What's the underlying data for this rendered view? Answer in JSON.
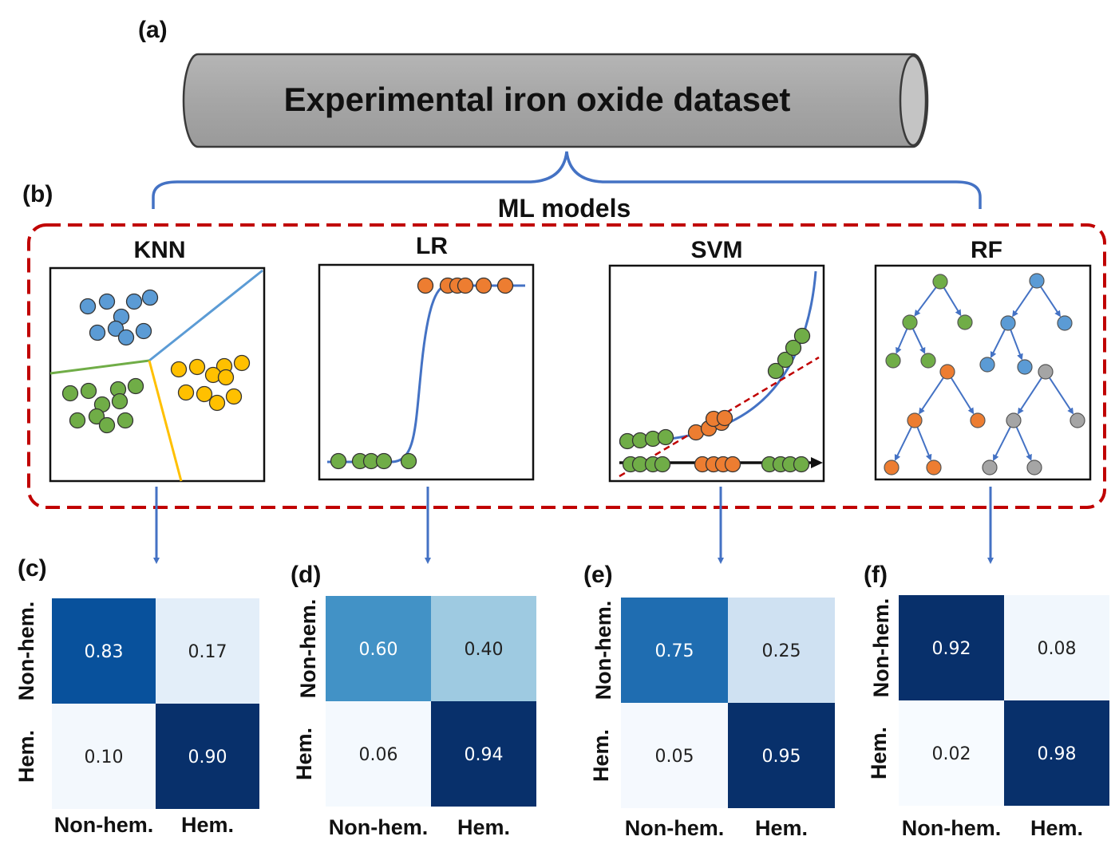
{
  "panel_a": {
    "label": "(a)",
    "title": "Experimental iron oxide dataset"
  },
  "panel_b": {
    "label": "(b)",
    "title": "ML models",
    "models": [
      "KNN",
      "LR",
      "SVM",
      "RF"
    ]
  },
  "colors": {
    "blue": "#5b9bd5",
    "green": "#70ad47",
    "orange": "#ed7d31",
    "yellow": "#ffc000",
    "gray": "#a5a5a5",
    "red_dash": "#c00000",
    "arrow": "#4472c4"
  },
  "matrices": [
    {
      "label": "(c)",
      "model": "KNN",
      "row_labels": [
        "Non-hem.",
        "Hem."
      ],
      "col_labels": [
        "Non-hem.",
        "Hem."
      ],
      "values": [
        [
          "0.83",
          "0.17"
        ],
        [
          "0.10",
          "0.90"
        ]
      ],
      "colors": [
        [
          "#08519c",
          "#e3eef9"
        ],
        [
          "#f3f8fd",
          "#08306b"
        ]
      ],
      "text_colors": [
        [
          "#ffffff",
          "#222222"
        ],
        [
          "#222222",
          "#ffffff"
        ]
      ]
    },
    {
      "label": "(d)",
      "model": "LR",
      "row_labels": [
        "Non-hem.",
        "Hem."
      ],
      "col_labels": [
        "Non-hem.",
        "Hem."
      ],
      "values": [
        [
          "0.60",
          "0.40"
        ],
        [
          "0.06",
          "0.94"
        ]
      ],
      "colors": [
        [
          "#4292c6",
          "#9ecae1"
        ],
        [
          "#f4f9fe",
          "#08306b"
        ]
      ],
      "text_colors": [
        [
          "#ffffff",
          "#222222"
        ],
        [
          "#222222",
          "#ffffff"
        ]
      ]
    },
    {
      "label": "(e)",
      "model": "SVM",
      "row_labels": [
        "Non-hem.",
        "Hem."
      ],
      "col_labels": [
        "Non-hem.",
        "Hem."
      ],
      "values": [
        [
          "0.75",
          "0.25"
        ],
        [
          "0.05",
          "0.95"
        ]
      ],
      "colors": [
        [
          "#1f6db1",
          "#cfe1f2"
        ],
        [
          "#f5f9fe",
          "#08306b"
        ]
      ],
      "text_colors": [
        [
          "#ffffff",
          "#222222"
        ],
        [
          "#222222",
          "#ffffff"
        ]
      ]
    },
    {
      "label": "(f)",
      "model": "RF",
      "row_labels": [
        "Non-hem.",
        "Hem."
      ],
      "col_labels": [
        "Non-hem.",
        "Hem."
      ],
      "values": [
        [
          "0.92",
          "0.08"
        ],
        [
          "0.02",
          "0.98"
        ]
      ],
      "colors": [
        [
          "#08306b",
          "#f1f7fd"
        ],
        [
          "#f7fbff",
          "#08306b"
        ]
      ],
      "text_colors": [
        [
          "#ffffff",
          "#222222"
        ],
        [
          "#222222",
          "#ffffff"
        ]
      ]
    }
  ]
}
